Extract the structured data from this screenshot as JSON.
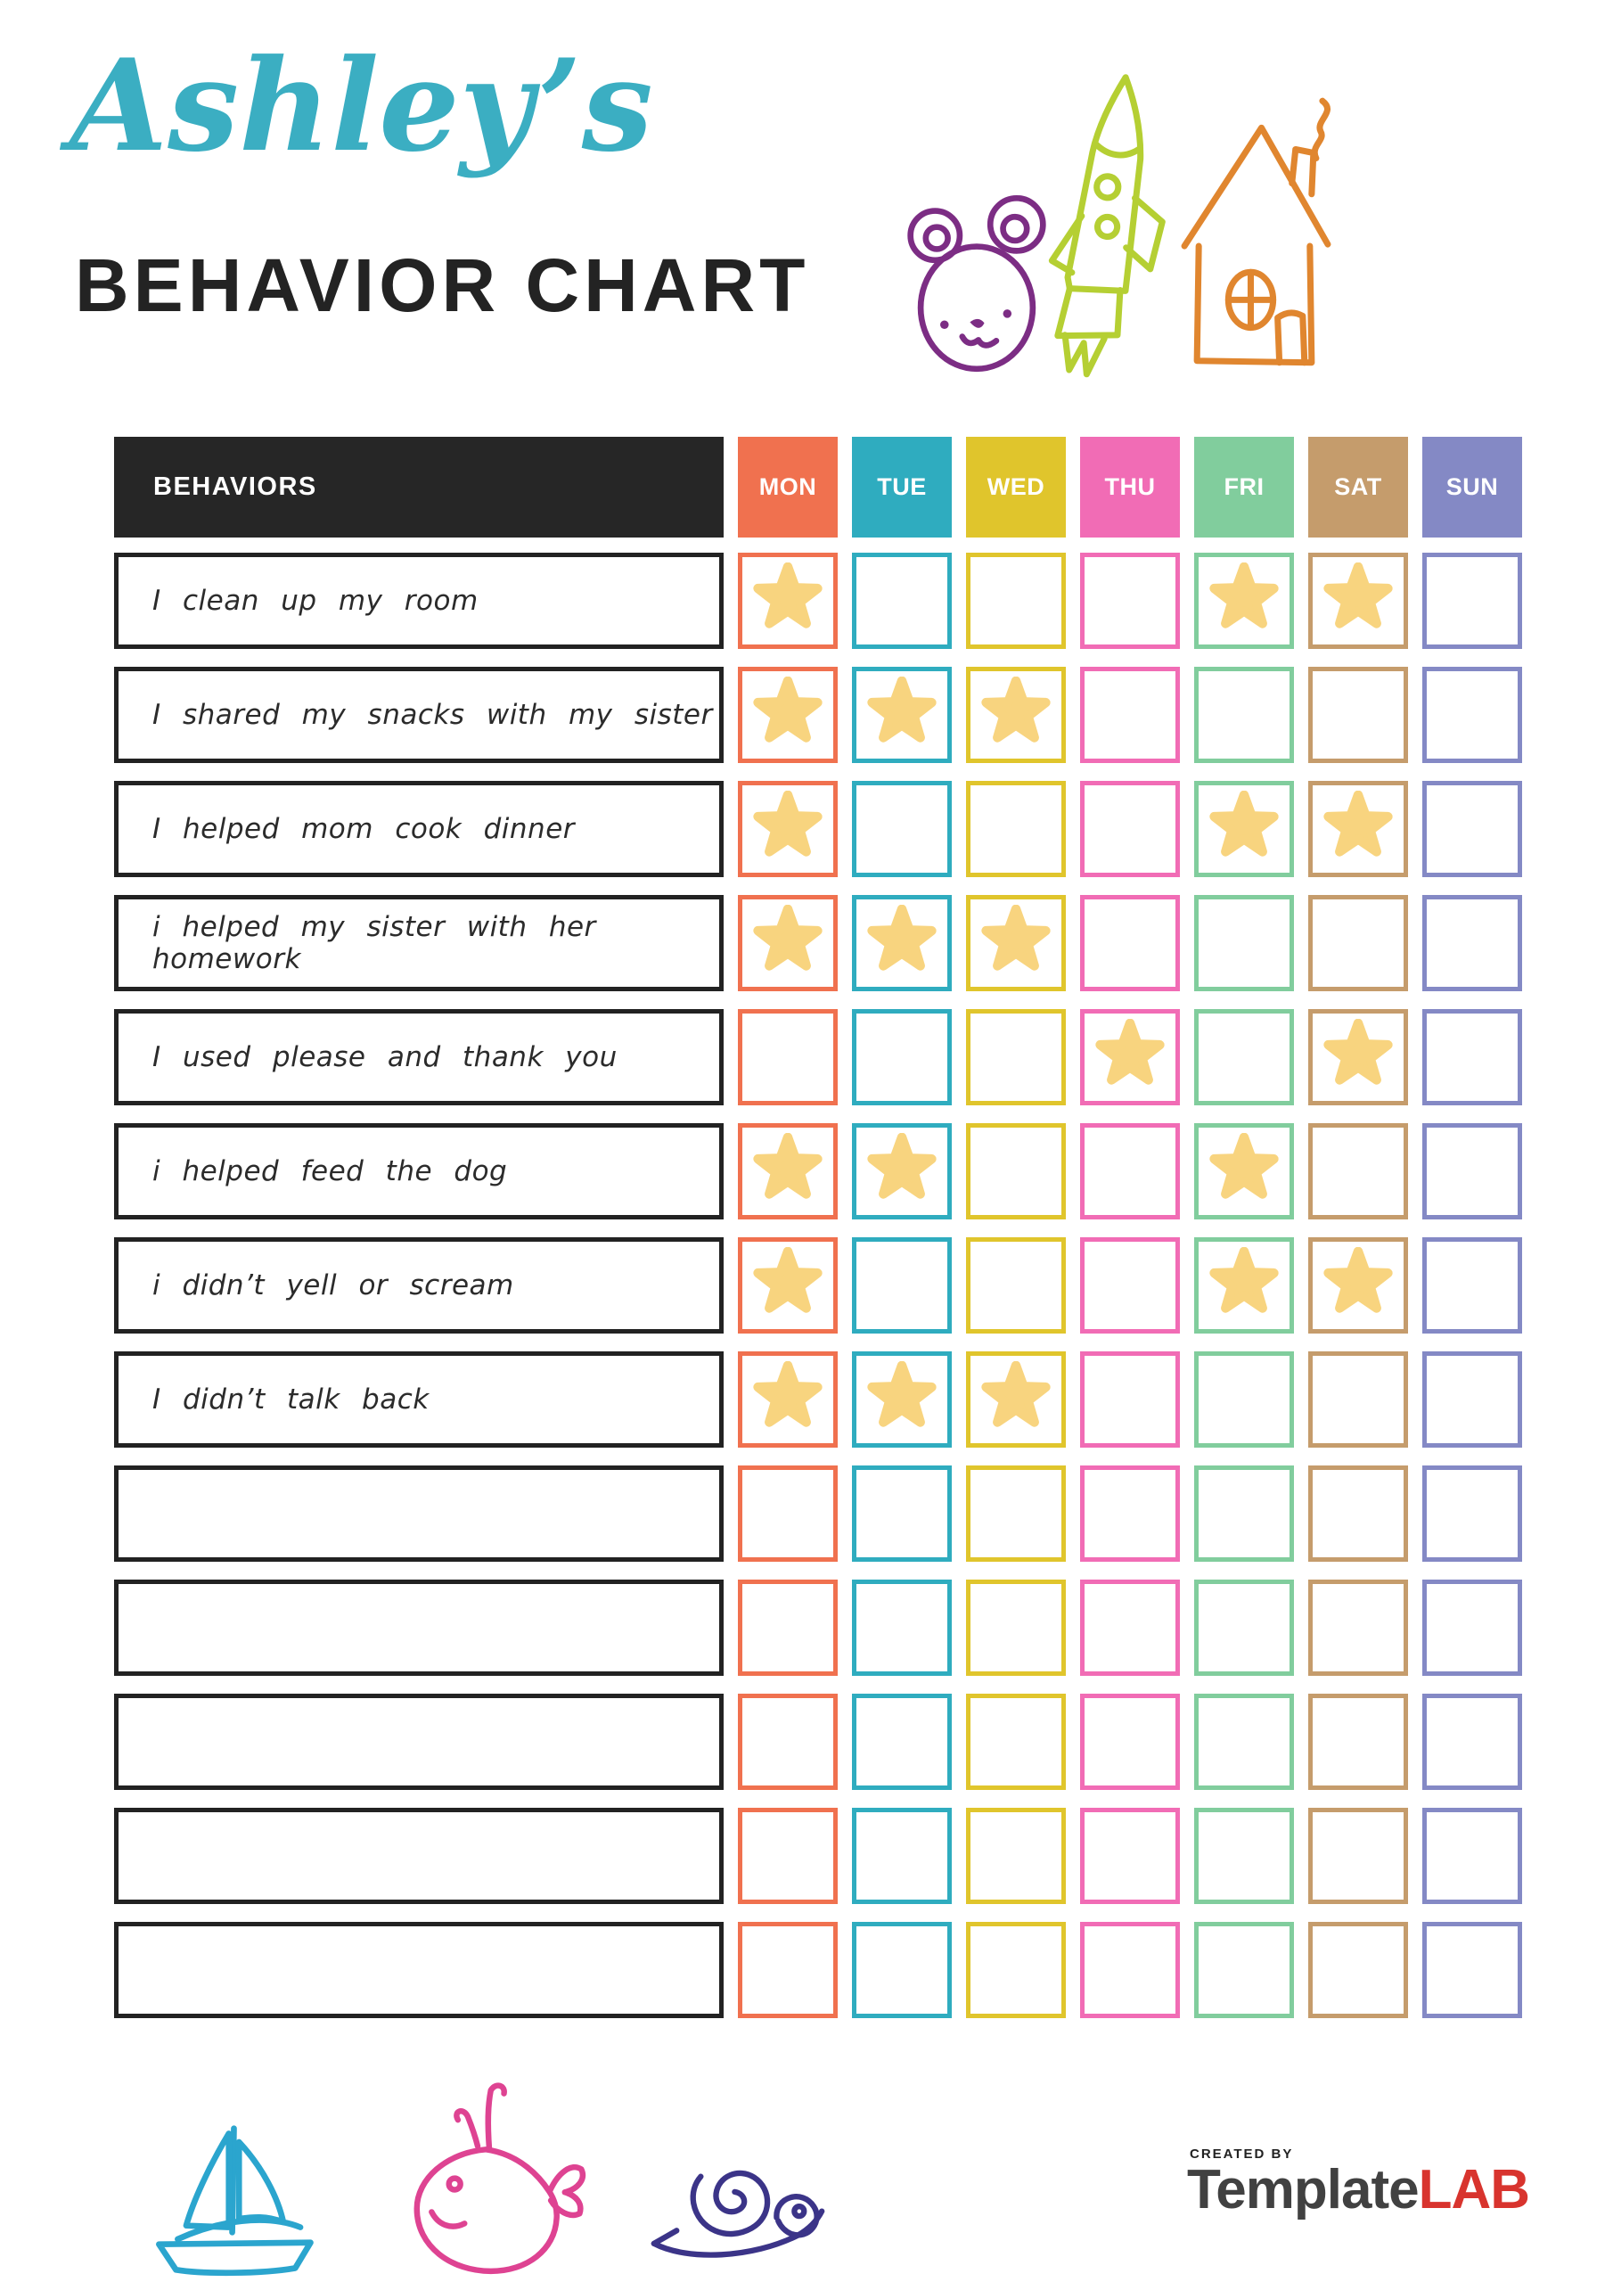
{
  "header": {
    "title_script": "Ashley’s",
    "title_main": "BEHAVIOR CHART"
  },
  "table": {
    "behaviors_header": "BEHAVIORS",
    "star_color": "#F8D47F",
    "days": [
      {
        "label": "MON",
        "color": "#F0714F"
      },
      {
        "label": "TUE",
        "color": "#2FACBF"
      },
      {
        "label": "WED",
        "color": "#E0C52C"
      },
      {
        "label": "THU",
        "color": "#F16CB5"
      },
      {
        "label": "FRI",
        "color": "#81CD9D"
      },
      {
        "label": "SAT",
        "color": "#C59C6C"
      },
      {
        "label": "SUN",
        "color": "#8489C5"
      }
    ],
    "rows": [
      {
        "label": "I clean up my room",
        "stars": [
          "MON",
          "FRI",
          "SAT"
        ]
      },
      {
        "label": "I shared my snacks with my sister",
        "stars": [
          "MON",
          "TUE",
          "WED"
        ]
      },
      {
        "label": "I helped mom cook dinner",
        "stars": [
          "MON",
          "FRI",
          "SAT"
        ]
      },
      {
        "label": "i helped my sister with her homework",
        "stars": [
          "MON",
          "TUE",
          "WED"
        ]
      },
      {
        "label": "I used please and thank you",
        "stars": [
          "THU",
          "SAT"
        ]
      },
      {
        "label": "i helped feed the dog",
        "stars": [
          "MON",
          "TUE",
          "FRI"
        ]
      },
      {
        "label": "i didn’t yell or scream",
        "stars": [
          "MON",
          "FRI",
          "SAT"
        ]
      },
      {
        "label": "I didn’t talk back",
        "stars": [
          "MON",
          "TUE",
          "WED"
        ]
      },
      {
        "label": "",
        "stars": []
      },
      {
        "label": "",
        "stars": []
      },
      {
        "label": "",
        "stars": []
      },
      {
        "label": "",
        "stars": []
      },
      {
        "label": "",
        "stars": []
      }
    ]
  },
  "doodles": {
    "bear": "#7C2D84",
    "rocket": "#B5CF33",
    "house": "#E0862F",
    "sailboat": "#2BA5CE",
    "whale": "#DE4392",
    "snail": "#3B3488"
  },
  "footer": {
    "created_by": "CREATED BY",
    "brand_gray": "Template",
    "brand_red": "LAB",
    "brand_red_color": "#D8342E"
  }
}
